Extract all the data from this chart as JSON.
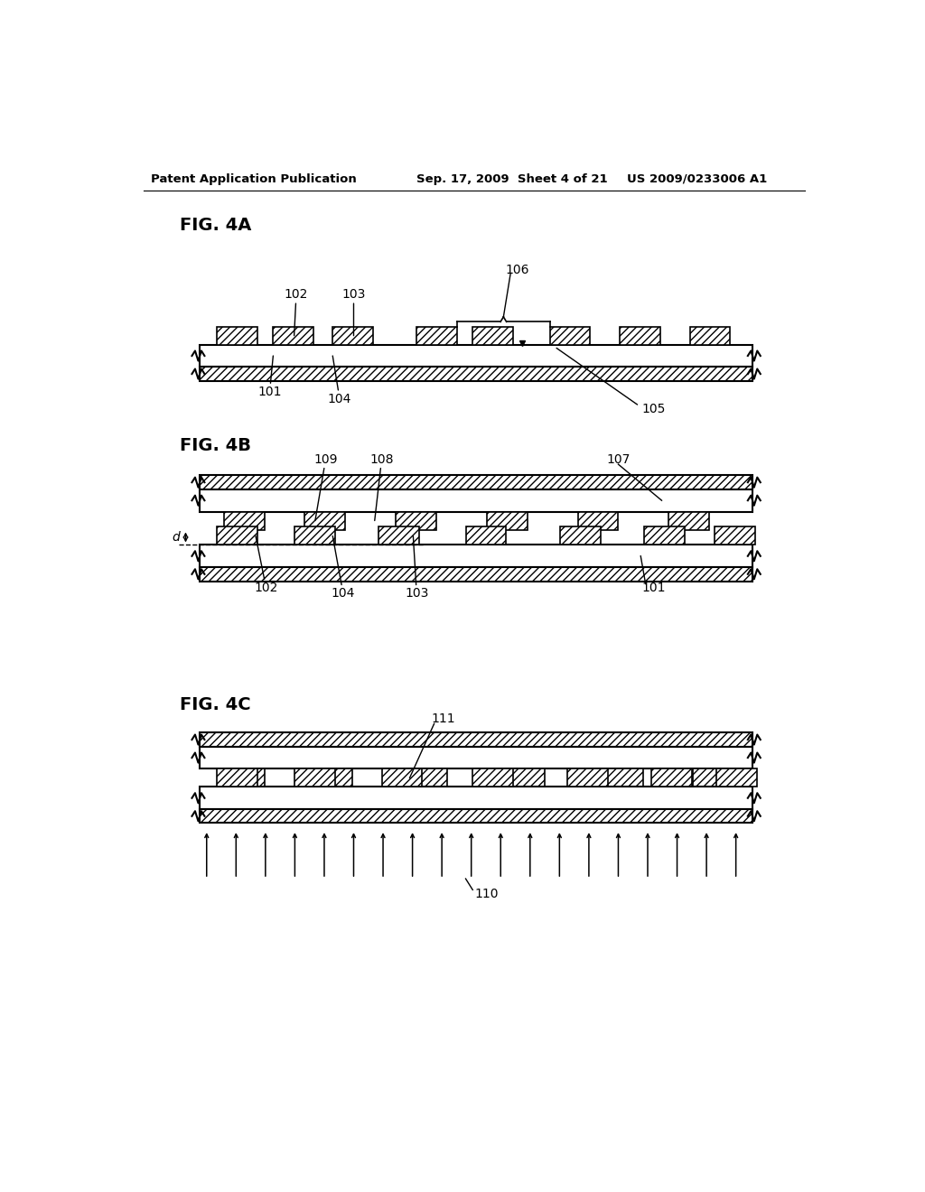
{
  "bg_color": "#ffffff",
  "header_text": "Patent Application Publication",
  "header_date": "Sep. 17, 2009  Sheet 4 of 21",
  "header_patent": "US 2009/0233006 A1",
  "line_color": "#000000",
  "fig4a_label": "FIG. 4A",
  "fig4b_label": "FIG. 4B",
  "fig4c_label": "FIG. 4C"
}
